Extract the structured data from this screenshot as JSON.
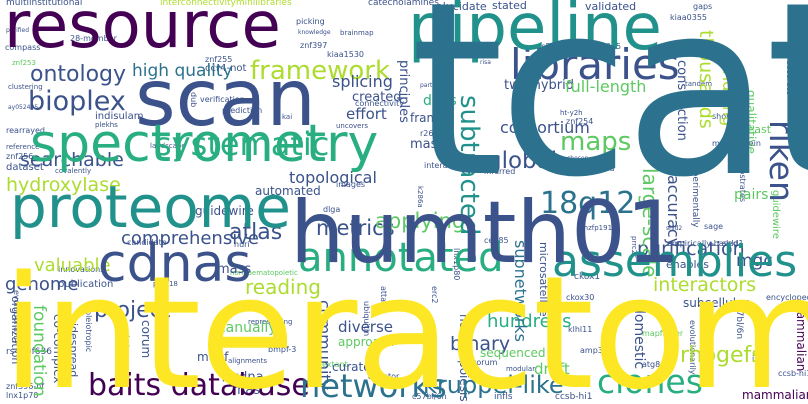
{
  "palette": {
    "dark_purple": "#440154",
    "indigo": "#3b528b",
    "blue": "#2c728e",
    "teal": "#21918c",
    "green_teal": "#28ae80",
    "green": "#5ec962",
    "lime": "#addc30",
    "yellow": "#fde725",
    "background": "#ffffff"
  },
  "words": [
    {
      "text": "tcat",
      "color": "#2c728e"
    },
    {
      "text": "interactome",
      "color": "#fde725"
    },
    {
      "text": "humth01",
      "color": "#3b528b"
    },
    {
      "text": "resource",
      "color": "#440154"
    },
    {
      "text": "pipeline",
      "color": "#21918c"
    },
    {
      "text": "scan",
      "color": "#3b528b"
    },
    {
      "text": "spectrometry",
      "color": "#28ae80"
    },
    {
      "text": "proteome",
      "color": "#21918c"
    },
    {
      "text": "cdnas",
      "color": "#3b528b"
    },
    {
      "text": "libraries",
      "color": "#3b528b"
    },
    {
      "text": "assemblies",
      "color": "#21918c"
    },
    {
      "text": "annotated",
      "color": "#28ae80"
    },
    {
      "text": "ontology",
      "color": "#3b528b"
    },
    {
      "text": "bioplex",
      "color": "#3b528b"
    },
    {
      "text": "framework",
      "color": "#addc30"
    },
    {
      "text": "systematic",
      "color": "#28ae80"
    },
    {
      "text": "riken",
      "color": "#3b528b"
    },
    {
      "text": "18q12",
      "color": "#2c728e"
    },
    {
      "text": "subtracted",
      "color": "#21918c"
    },
    {
      "text": "maps",
      "color": "#5ec962"
    },
    {
      "text": "networks",
      "color": "#2c728e"
    },
    {
      "text": "baits",
      "color": "#440154"
    },
    {
      "text": "database",
      "color": "#440154"
    },
    {
      "text": "clones",
      "color": "#28ae80"
    },
    {
      "text": "kruppel-like",
      "color": "#2c728e"
    },
    {
      "text": "rhogefs",
      "color": "#addc30"
    },
    {
      "text": "high quality",
      "color": "#2c728e"
    },
    {
      "text": "searchable",
      "color": "#3b528b"
    },
    {
      "text": "hydroxylase",
      "color": "#addc30"
    },
    {
      "text": "comprehensive",
      "color": "#3b528b"
    },
    {
      "text": "project",
      "color": "#3b528b"
    },
    {
      "text": "foundation",
      "color": "#5ec962"
    },
    {
      "text": "valuable",
      "color": "#addc30"
    },
    {
      "text": "genome",
      "color": "#3b528b"
    },
    {
      "text": "atlas",
      "color": "#3b528b"
    },
    {
      "text": "reading",
      "color": "#addc30"
    },
    {
      "text": "metrics",
      "color": "#3b528b"
    },
    {
      "text": "applying",
      "color": "#5ec962"
    },
    {
      "text": "topological",
      "color": "#3b528b"
    },
    {
      "text": "global",
      "color": "#3b528b"
    },
    {
      "text": "consortium",
      "color": "#3b528b"
    },
    {
      "text": "two-hybrid",
      "color": "#3b528b"
    },
    {
      "text": "full-length",
      "color": "#5ec962"
    },
    {
      "text": "splicing",
      "color": "#3b528b"
    },
    {
      "text": "purification",
      "color": "#3b528b"
    },
    {
      "text": "interactors",
      "color": "#addc30"
    },
    {
      "text": "hundreds",
      "color": "#28ae80"
    },
    {
      "text": "binary",
      "color": "#3b528b"
    },
    {
      "text": "community",
      "color": "#3b528b"
    },
    {
      "text": "mgc",
      "color": "#3b528b"
    },
    {
      "text": "accuracy",
      "color": "#3b528b"
    },
    {
      "text": "large-scale",
      "color": "#5ec962"
    },
    {
      "text": "thousands",
      "color": "#addc30"
    },
    {
      "text": "bridging",
      "color": "#addc30"
    },
    {
      "text": "qualitative",
      "color": "#5ec962"
    },
    {
      "text": "preys",
      "color": "#3b528b"
    },
    {
      "text": "mammalian",
      "color": "#440154"
    },
    {
      "text": "subnetworks",
      "color": "#2c728e"
    },
    {
      "text": "effort",
      "color": "#3b528b"
    },
    {
      "text": "frames",
      "color": "#3b528b"
    },
    {
      "text": "created",
      "color": "#3b528b"
    },
    {
      "text": "dnas",
      "color": "#28ae80"
    },
    {
      "text": "yeast",
      "color": "#5ec962"
    },
    {
      "text": "pairs",
      "color": "#5ec962"
    },
    {
      "text": "subcellular",
      "color": "#3b528b"
    },
    {
      "text": "enables",
      "color": "#3b528b"
    },
    {
      "text": "domestic",
      "color": "#3b528b"
    },
    {
      "text": "manually",
      "color": "#5ec962"
    },
    {
      "text": "diverse",
      "color": "#3b528b"
    },
    {
      "text": "cdna",
      "color": "#3b528b"
    },
    {
      "text": "motif",
      "color": "#3b528b"
    },
    {
      "text": "rnas",
      "color": "#3b528b"
    },
    {
      "text": "curated",
      "color": "#3b528b"
    },
    {
      "text": "approach",
      "color": "#5ec962"
    },
    {
      "text": "sequenced",
      "color": "#5ec962"
    },
    {
      "text": "draft",
      "color": "#5ec962"
    },
    {
      "text": "mass",
      "color": "#3b528b"
    },
    {
      "text": "stated",
      "color": "#3b528b"
    },
    {
      "text": "validated",
      "color": "#3b528b"
    },
    {
      "text": "transcriptome",
      "color": "#3b528b"
    },
    {
      "text": "principles",
      "color": "#3b528b"
    },
    {
      "text": "construction",
      "color": "#3b528b"
    },
    {
      "text": "microsatellite",
      "color": "#3b528b"
    },
    {
      "text": "hematopoiesis",
      "color": "#3b528b"
    },
    {
      "text": "organization",
      "color": "#3b528b"
    },
    {
      "text": "co-complex",
      "color": "#3b528b"
    },
    {
      "text": "widespread",
      "color": "#3b528b"
    },
    {
      "text": "ccr4-not",
      "color": "#3b528b"
    },
    {
      "text": "multiinstitutional",
      "color": "#3b528b"
    },
    {
      "text": "interconnectivityminilibraries",
      "color": "#addc30"
    },
    {
      "text": "catecholamines",
      "color": "#3b528b"
    },
    {
      "text": "elucidate",
      "color": "#3b528b"
    },
    {
      "text": "28-member",
      "color": "#3b528b"
    },
    {
      "text": "compass",
      "color": "#3b528b"
    },
    {
      "text": "picking",
      "color": "#3b528b"
    },
    {
      "text": "knowledge",
      "color": "#3b528b"
    },
    {
      "text": "brainmap",
      "color": "#3b528b"
    },
    {
      "text": "znf397",
      "color": "#3b528b"
    },
    {
      "text": "znf255",
      "color": "#3b528b"
    },
    {
      "text": "znf219",
      "color": "#3b528b"
    },
    {
      "text": "znf254",
      "color": "#3b528b"
    },
    {
      "text": "znf256",
      "color": "#3b528b"
    },
    {
      "text": "znf396-nf",
      "color": "#3b528b"
    },
    {
      "text": "lnx1p70",
      "color": "#3b528b"
    },
    {
      "text": "rearrayed",
      "color": "#3b528b"
    },
    {
      "text": "reference",
      "color": "#3b528b"
    },
    {
      "text": "dataset",
      "color": "#3b528b"
    },
    {
      "text": "indisulam",
      "color": "#3b528b"
    },
    {
      "text": "rs572483",
      "color": "#3b528b"
    },
    {
      "text": "rs3127075",
      "color": "#3b528b"
    },
    {
      "text": "rs466f636",
      "color": "#3b528b"
    },
    {
      "text": "adaptor",
      "color": "#3b528b"
    },
    {
      "text": "risa",
      "color": "#3b528b"
    },
    {
      "text": "gaps",
      "color": "#3b528b"
    },
    {
      "text": "kiaa0355",
      "color": "#3b528b"
    },
    {
      "text": "kiaa1530",
      "color": "#3b528b"
    },
    {
      "text": "accurate",
      "color": "#3b528b"
    },
    {
      "text": "tandem",
      "color": "#3b528b"
    },
    {
      "text": "partners",
      "color": "#3b528b"
    },
    {
      "text": "connectivity",
      "color": "#3b528b"
    },
    {
      "text": "uncovers",
      "color": "#3b528b"
    },
    {
      "text": "verification",
      "color": "#3b528b"
    },
    {
      "text": "dub",
      "color": "#3b528b"
    },
    {
      "text": "kai",
      "color": "#3b528b"
    },
    {
      "text": "prediction",
      "color": "#3b528b"
    },
    {
      "text": "plekhs",
      "color": "#3b528b"
    },
    {
      "text": "shotgun",
      "color": "#3b528b"
    },
    {
      "text": "multiprotein",
      "color": "#3b528b"
    },
    {
      "text": "experimentally",
      "color": "#5ec962"
    },
    {
      "text": "guidewire",
      "color": "#3b528b"
    },
    {
      "text": "substrates",
      "color": "#3b528b"
    },
    {
      "text": "automated",
      "color": "#3b528b"
    },
    {
      "text": "institutes",
      "color": "#3b528b"
    },
    {
      "text": "variations",
      "color": "#3b528b"
    },
    {
      "text": "images",
      "color": "#3b528b"
    },
    {
      "text": "dlga",
      "color": "#3b528b"
    },
    {
      "text": "kox26",
      "color": "#3b528b"
    },
    {
      "text": "conserved",
      "color": "#3b528b"
    },
    {
      "text": "inferred",
      "color": "#3b528b"
    },
    {
      "text": "chosen",
      "color": "#3b528b"
    },
    {
      "text": "covalently",
      "color": "#3b528b"
    },
    {
      "text": "candidate",
      "color": "#3b528b"
    },
    {
      "text": "huri",
      "color": "#3b528b"
    },
    {
      "text": "publication",
      "color": "#3b528b"
    },
    {
      "text": "innovations",
      "color": "#3b528b"
    },
    {
      "text": "ubiquitin",
      "color": "#3b528b"
    },
    {
      "text": "attaatt",
      "color": "#3b528b"
    },
    {
      "text": "erc2",
      "color": "#3b528b"
    },
    {
      "text": "lnx1p80",
      "color": "#3b528b"
    },
    {
      "text": "cep85",
      "color": "#3b528b"
    },
    {
      "text": "prrc2c",
      "color": "#3b528b"
    },
    {
      "text": "screened",
      "color": "#3b528b"
    },
    {
      "text": "empirically-based",
      "color": "#3b528b"
    },
    {
      "text": "sage",
      "color": "#3b528b"
    },
    {
      "text": "shld1",
      "color": "#3b528b"
    },
    {
      "text": "shld2",
      "color": "#3b528b"
    },
    {
      "text": "ckox1",
      "color": "#3b528b"
    },
    {
      "text": "ckox30",
      "color": "#3b528b"
    },
    {
      "text": "klhl11",
      "color": "#3b528b"
    },
    {
      "text": "encyclopedia",
      "color": "#3b528b"
    },
    {
      "text": "bmpf-3",
      "color": "#5ec962"
    },
    {
      "text": "pet318",
      "color": "#3b528b"
    },
    {
      "text": "nonhaematopoietic",
      "color": "#3b528b"
    },
    {
      "text": "representing",
      "color": "#5ec962"
    },
    {
      "text": "pleiotropic",
      "color": "#3b528b"
    },
    {
      "text": "phylogenetic",
      "color": "#3b528b"
    },
    {
      "text": "corum",
      "color": "#3b528b"
    },
    {
      "text": "alignments",
      "color": "#5ec962"
    },
    {
      "text": "extant",
      "color": "#3b528b"
    },
    {
      "text": "modular",
      "color": "#3b528b"
    },
    {
      "text": "amp32a",
      "color": "#3b528b"
    },
    {
      "text": "atg8",
      "color": "#5ec962"
    },
    {
      "text": "mapfinder",
      "color": "#3b528b"
    },
    {
      "text": "evolutionarily",
      "color": "#3b528b"
    },
    {
      "text": "c57bl/6n",
      "color": "#3b528b"
    },
    {
      "text": "infls",
      "color": "#3b528b"
    },
    {
      "text": "ccsb-hi1",
      "color": "#3b528b"
    },
    {
      "text": "ay052495",
      "color": "#3b528b"
    },
    {
      "text": "clustering",
      "color": "#3b528b"
    },
    {
      "text": "purified",
      "color": "#3b528b"
    },
    {
      "text": "landscape",
      "color": "#3b528b"
    },
    {
      "text": "r26eyfp",
      "color": "#3b528b"
    },
    {
      "text": "interacting",
      "color": "#3b528b"
    },
    {
      "text": "k286a",
      "color": "#3b528b"
    },
    {
      "text": "ht-y2h",
      "color": "#3b528b"
    },
    {
      "text": "shzfp191",
      "color": "#3b528b"
    },
    {
      "text": "384-multicapillary",
      "color": "#3b528b"
    },
    {
      "text": "orf",
      "color": "#3b528b"
    },
    {
      "text": "ras",
      "color": "#3b528b"
    }
  ]
}
